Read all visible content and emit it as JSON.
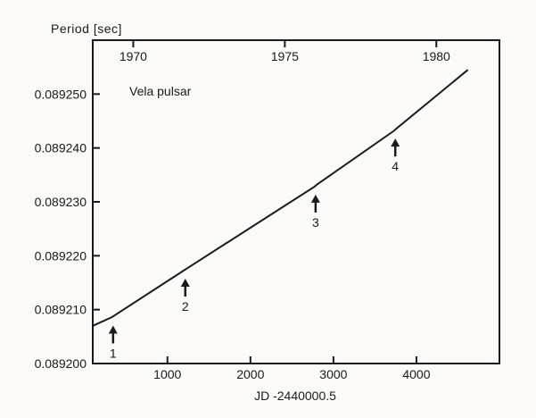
{
  "chart_data": {
    "type": "line",
    "title": "Period [sec]",
    "xlabel": "JD -2440000.5",
    "annotation_label": "Vela pulsar",
    "xlim": [
      100,
      5000
    ],
    "ylim": [
      0.0892,
      0.08926
    ],
    "x_ticks": [
      1000,
      2000,
      3000,
      4000
    ],
    "x_tick_labels": [
      "1000",
      "2000",
      "3000",
      "4000"
    ],
    "top_axis": {
      "ticks": [
        588,
        2414,
        4240
      ],
      "tick_labels": [
        "1970",
        "1975",
        "1980"
      ]
    },
    "y_ticks": [
      0.0892,
      0.08921,
      0.08922,
      0.08923,
      0.08924,
      0.08925
    ],
    "y_tick_labels": [
      "0.089200",
      "0.089210",
      "0.089220",
      "0.089230",
      "0.089240",
      "0.089250"
    ],
    "grid": false,
    "series": [
      {
        "x": [
          100,
          330,
          360,
          1200,
          1230,
          2770,
          2800,
          3730,
          3760,
          4620
        ],
        "y": [
          0.089207,
          0.0892086,
          0.0892089,
          0.0892173,
          0.0892176,
          0.0892328,
          0.0892332,
          0.0892432,
          0.0892436,
          0.0892545
        ]
      }
    ],
    "glitches": [
      {
        "label": "1",
        "x": 345,
        "y": 0.0892087
      },
      {
        "label": "2",
        "x": 1215,
        "y": 0.0892174
      },
      {
        "label": "3",
        "x": 2785,
        "y": 0.089233
      },
      {
        "label": "4",
        "x": 3745,
        "y": 0.0892434
      }
    ],
    "colors": {
      "ink": "#1a1a1a",
      "background": "#fbfaf8"
    }
  }
}
